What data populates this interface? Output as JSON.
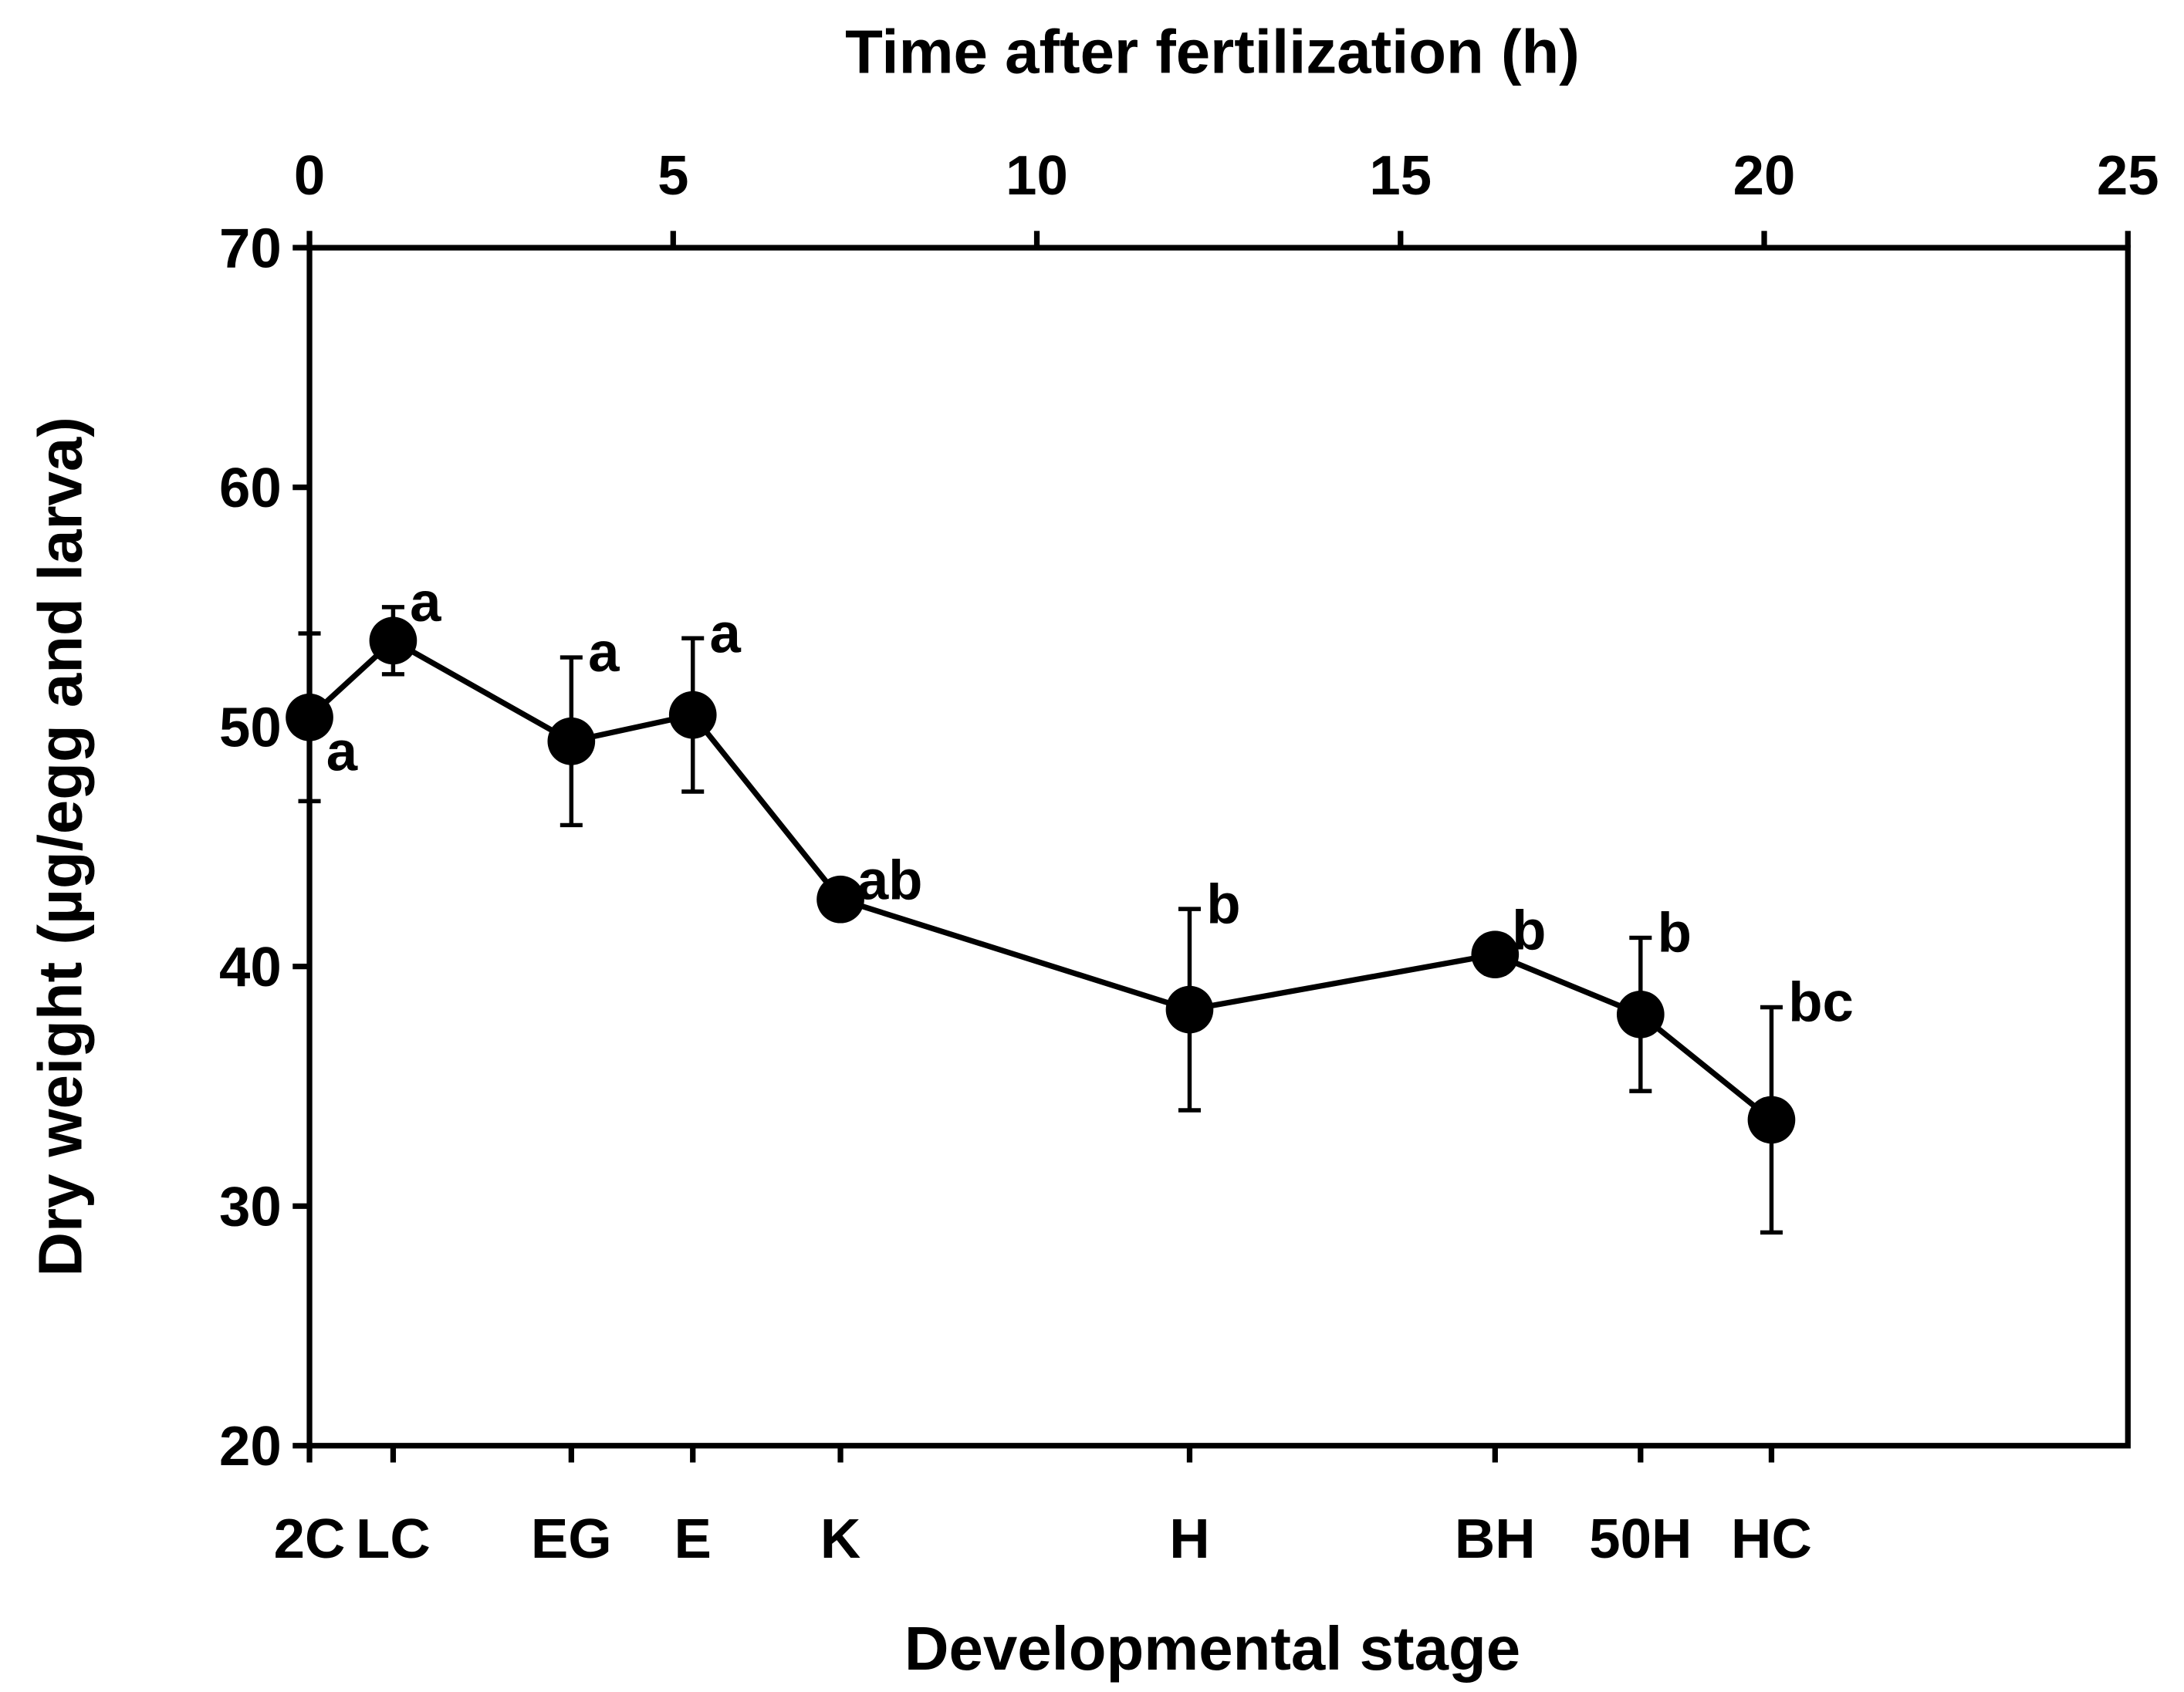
{
  "chart_data": {
    "type": "line",
    "title": "",
    "xlabel_top": "Time after fertilization (h)",
    "xlabel_bottom": "Developmental stage",
    "ylabel": "Dry weight (µg/egg and larva)",
    "xlim": [
      0,
      25
    ],
    "ylim": [
      20,
      70
    ],
    "xticks": [
      0,
      5,
      10,
      15,
      20,
      25
    ],
    "yticks": [
      20,
      30,
      40,
      50,
      60,
      70
    ],
    "grid": false,
    "series": [
      {
        "name": "Dry weight",
        "points": [
          {
            "stage": "2C",
            "x": 0,
            "y": 50.4,
            "err": 3.5,
            "letter": "a",
            "lpos": "below"
          },
          {
            "stage": "LC",
            "x": 1.15,
            "y": 53.6,
            "err": 1.4,
            "letter": "a",
            "lpos": "above"
          },
          {
            "stage": "EG",
            "x": 3.6,
            "y": 49.4,
            "err": 3.5,
            "letter": "a",
            "lpos": "above"
          },
          {
            "stage": "E",
            "x": 5.27,
            "y": 50.5,
            "err": 3.2,
            "letter": "a",
            "lpos": "above"
          },
          {
            "stage": "K",
            "x": 7.3,
            "y": 42.8,
            "err": 0.3,
            "letter": "ab",
            "lpos": "above"
          },
          {
            "stage": "H",
            "x": 12.1,
            "y": 38.2,
            "err": 4.2,
            "letter": "b",
            "lpos": "above"
          },
          {
            "stage": "BH",
            "x": 16.3,
            "y": 40.5,
            "err": 0.8,
            "letter": "b",
            "lpos": "above"
          },
          {
            "stage": "50H",
            "x": 18.3,
            "y": 38.0,
            "err": 3.2,
            "letter": "b",
            "lpos": "above"
          },
          {
            "stage": "HC",
            "x": 20.1,
            "y": 33.6,
            "err": 4.7,
            "letter": "bc",
            "lpos": "above"
          }
        ]
      }
    ]
  }
}
